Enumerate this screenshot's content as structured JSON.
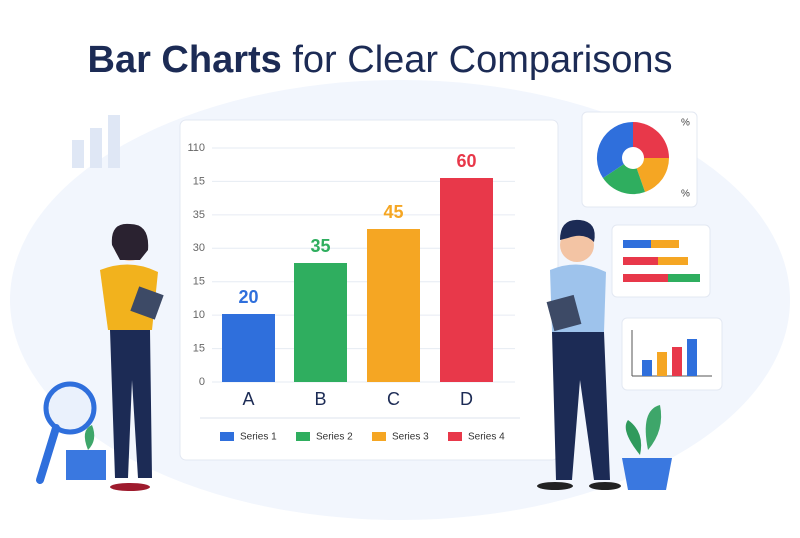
{
  "header": {
    "title_bold": "Bar Charts",
    "title_rest": "for Clear Comparisons"
  },
  "chart": {
    "axis_tick_texts": [
      "0",
      "15",
      "10",
      "15",
      "30",
      "35",
      "15",
      "110"
    ],
    "categories": [
      "A",
      "B",
      "C",
      "D"
    ],
    "values": [
      20,
      35,
      45,
      60
    ],
    "colors": [
      "#2f6fdc",
      "#2fae5f",
      "#f5a623",
      "#e8384a"
    ],
    "legend": [
      "Series 1",
      "Series 2",
      "Series 3",
      "Series 4"
    ]
  },
  "pie_card": {
    "labels": [
      "%",
      "%"
    ]
  }
}
